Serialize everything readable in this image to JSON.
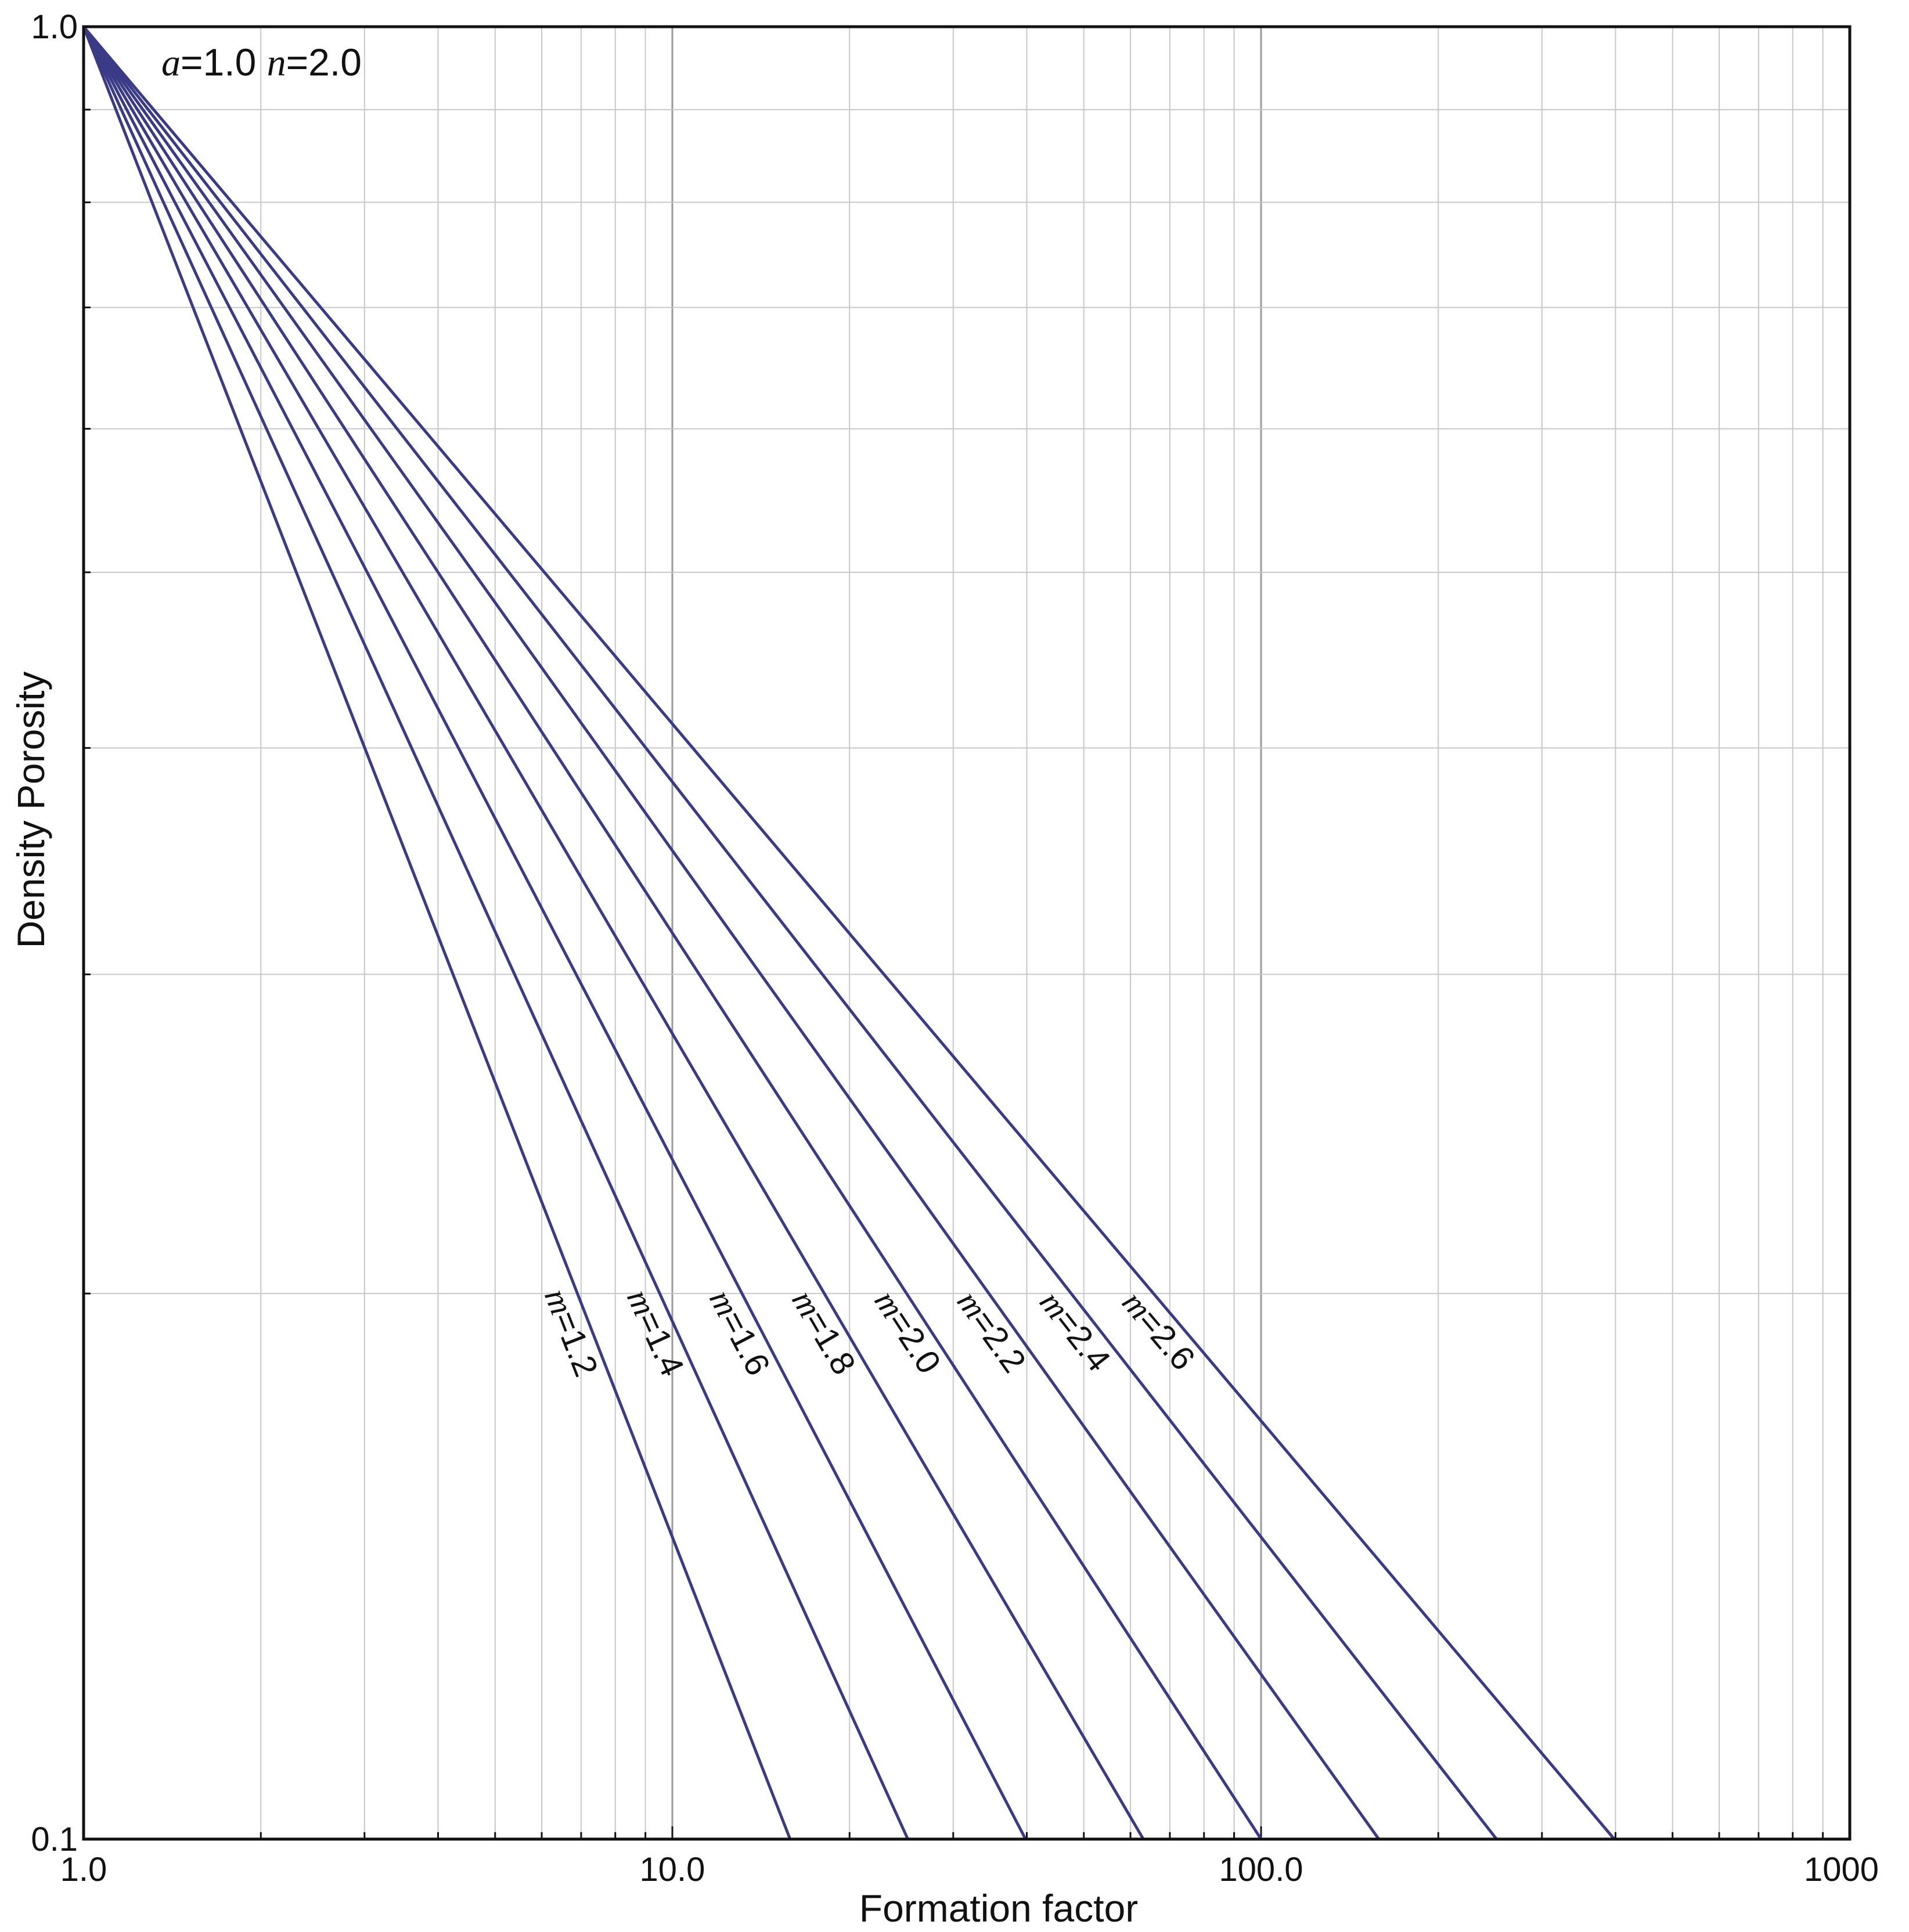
{
  "chart_data": {
    "type": "line",
    "xlabel": "Formation factor",
    "ylabel": "Density Porosity",
    "xscale": "log",
    "yscale": "log",
    "xlim": [
      1,
      1000
    ],
    "ylim": [
      0.1,
      1.0
    ],
    "x_tick_labels": [
      "1.0",
      "10.0",
      "100.0",
      "1000"
    ],
    "y_tick_labels": [
      "1.0",
      "0.1"
    ],
    "grid": true,
    "annotation": {
      "a_symbol": "a",
      "a_value": "=1.0 ",
      "n_symbol": "n",
      "n_value": "=2.0"
    },
    "line_color": "#3a3a86",
    "series": [
      {
        "label_symbol": "m",
        "label_value": "=1.2",
        "m": 1.2,
        "x": [
          1,
          15.85
        ],
        "y": [
          1.0,
          0.1
        ]
      },
      {
        "label_symbol": "m",
        "label_value": "=1.4",
        "m": 1.4,
        "x": [
          1,
          25.12
        ],
        "y": [
          1.0,
          0.1
        ]
      },
      {
        "label_symbol": "m",
        "label_value": "=1.6",
        "m": 1.6,
        "x": [
          1,
          39.81
        ],
        "y": [
          1.0,
          0.1
        ]
      },
      {
        "label_symbol": "m",
        "label_value": "=1.8",
        "m": 1.8,
        "x": [
          1,
          63.1
        ],
        "y": [
          1.0,
          0.1
        ]
      },
      {
        "label_symbol": "m",
        "label_value": "=2.0",
        "m": 2.0,
        "x": [
          1,
          100.0
        ],
        "y": [
          1.0,
          0.1
        ]
      },
      {
        "label_symbol": "m",
        "label_value": "=2.2",
        "m": 2.2,
        "x": [
          1,
          158.49
        ],
        "y": [
          1.0,
          0.1
        ]
      },
      {
        "label_symbol": "m",
        "label_value": "=2.4",
        "m": 2.4,
        "x": [
          1,
          251.19
        ],
        "y": [
          1.0,
          0.1
        ]
      },
      {
        "label_symbol": "m",
        "label_value": "=2.6",
        "m": 2.6,
        "x": [
          1,
          398.11
        ],
        "y": [
          1.0,
          0.1
        ]
      }
    ]
  }
}
